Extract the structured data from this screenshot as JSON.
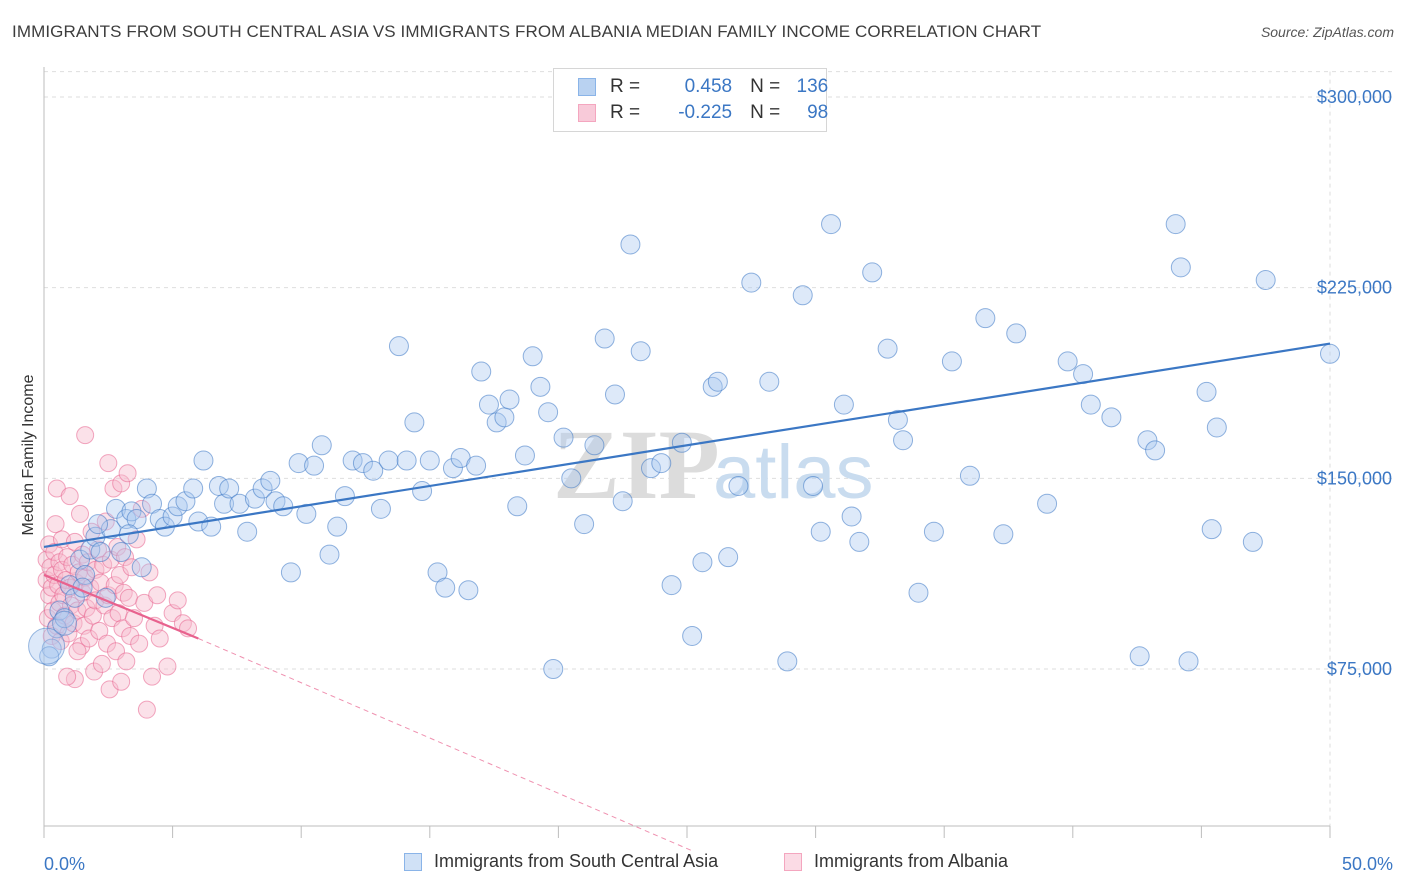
{
  "title": "IMMIGRANTS FROM SOUTH CENTRAL ASIA VS IMMIGRANTS FROM ALBANIA MEDIAN FAMILY INCOME CORRELATION CHART",
  "source": "Source: ZipAtlas.com",
  "watermark": {
    "zip": "ZIP",
    "atlas": "atlas"
  },
  "legend": {
    "rows": [
      {
        "r_label": "R =",
        "r_value": "0.458",
        "n_label": "N =",
        "n_value": "136",
        "color": "#8ab4e8"
      },
      {
        "r_label": "R =",
        "r_value": "-0.225",
        "n_label": "N =",
        "n_value": "98",
        "color": "#f4a6bf"
      }
    ]
  },
  "colors": {
    "blue": "#3b77c4",
    "blue_fill": "#a9c8ef",
    "pink": "#e8628e",
    "pink_fill": "#f6bccf"
  },
  "chart_data": {
    "type": "scatter",
    "title": "IMMIGRANTS FROM SOUTH CENTRAL ASIA VS IMMIGRANTS FROM ALBANIA MEDIAN FAMILY INCOME CORRELATION CHART",
    "xlabel": "",
    "ylabel": "Median Family Income",
    "xlim": [
      0,
      50
    ],
    "ylim": [
      0,
      310000
    ],
    "x_tick_labels": [
      "0.0%",
      "50.0%"
    ],
    "y_ticks": [
      75000,
      150000,
      225000,
      300000
    ],
    "y_tick_labels": [
      "$75,000",
      "$150,000",
      "$225,000",
      "$300,000"
    ],
    "grid": true,
    "legend_position": "top-center",
    "series": [
      {
        "name": "Immigrants from South Central Asia",
        "color": "#3b77c4",
        "r": 0.458,
        "n": 136,
        "trend": {
          "x": [
            0,
            50
          ],
          "y": [
            123000,
            203000
          ]
        },
        "points": [
          [
            0.3,
            83000
          ],
          [
            0.5,
            91000
          ],
          [
            0.6,
            98000
          ],
          [
            0.8,
            95000
          ],
          [
            1.0,
            108000
          ],
          [
            1.2,
            103000
          ],
          [
            1.4,
            118000
          ],
          [
            1.6,
            112000
          ],
          [
            1.8,
            122000
          ],
          [
            2.0,
            127000
          ],
          [
            2.2,
            121000
          ],
          [
            2.4,
            103000
          ],
          [
            2.6,
            130000
          ],
          [
            2.8,
            138000
          ],
          [
            3.0,
            121000
          ],
          [
            3.2,
            134000
          ],
          [
            3.4,
            137000
          ],
          [
            3.6,
            134000
          ],
          [
            3.8,
            115000
          ],
          [
            4.0,
            146000
          ],
          [
            4.2,
            140000
          ],
          [
            4.5,
            134000
          ],
          [
            4.7,
            131000
          ],
          [
            5.0,
            135000
          ],
          [
            5.2,
            139000
          ],
          [
            5.5,
            141000
          ],
          [
            5.8,
            146000
          ],
          [
            6.0,
            133000
          ],
          [
            6.2,
            157000
          ],
          [
            6.5,
            131000
          ],
          [
            6.8,
            147000
          ],
          [
            7.0,
            140000
          ],
          [
            7.2,
            146000
          ],
          [
            7.6,
            140000
          ],
          [
            7.9,
            129000
          ],
          [
            8.2,
            142000
          ],
          [
            8.5,
            146000
          ],
          [
            8.8,
            149000
          ],
          [
            9.0,
            141000
          ],
          [
            9.3,
            139000
          ],
          [
            9.6,
            113000
          ],
          [
            9.9,
            156000
          ],
          [
            10.2,
            136000
          ],
          [
            10.5,
            155000
          ],
          [
            10.8,
            163000
          ],
          [
            11.1,
            120000
          ],
          [
            11.4,
            131000
          ],
          [
            11.7,
            143000
          ],
          [
            12.0,
            157000
          ],
          [
            12.4,
            156000
          ],
          [
            12.8,
            153000
          ],
          [
            13.1,
            138000
          ],
          [
            13.4,
            157000
          ],
          [
            13.8,
            202000
          ],
          [
            14.1,
            157000
          ],
          [
            14.4,
            172000
          ],
          [
            14.7,
            145000
          ],
          [
            15.0,
            157000
          ],
          [
            15.3,
            113000
          ],
          [
            15.6,
            107000
          ],
          [
            15.9,
            154000
          ],
          [
            16.2,
            158000
          ],
          [
            16.5,
            106000
          ],
          [
            16.8,
            155000
          ],
          [
            17.0,
            192000
          ],
          [
            17.3,
            179000
          ],
          [
            17.6,
            172000
          ],
          [
            17.9,
            174000
          ],
          [
            18.1,
            181000
          ],
          [
            18.4,
            139000
          ],
          [
            18.7,
            159000
          ],
          [
            19.0,
            198000
          ],
          [
            19.3,
            186000
          ],
          [
            19.6,
            176000
          ],
          [
            19.8,
            75000
          ],
          [
            20.2,
            166000
          ],
          [
            20.5,
            150000
          ],
          [
            21.0,
            132000
          ],
          [
            21.4,
            163000
          ],
          [
            21.8,
            205000
          ],
          [
            22.2,
            183000
          ],
          [
            22.5,
            141000
          ],
          [
            22.8,
            242000
          ],
          [
            23.2,
            200000
          ],
          [
            23.6,
            154000
          ],
          [
            24.0,
            156000
          ],
          [
            24.4,
            108000
          ],
          [
            24.8,
            164000
          ],
          [
            25.2,
            88000
          ],
          [
            25.6,
            117000
          ],
          [
            26.0,
            186000
          ],
          [
            26.2,
            188000
          ],
          [
            26.6,
            119000
          ],
          [
            27.0,
            147000
          ],
          [
            27.5,
            227000
          ],
          [
            28.2,
            188000
          ],
          [
            28.9,
            78000
          ],
          [
            29.5,
            222000
          ],
          [
            29.9,
            147000
          ],
          [
            30.2,
            129000
          ],
          [
            30.6,
            250000
          ],
          [
            31.1,
            179000
          ],
          [
            31.4,
            135000
          ],
          [
            31.7,
            125000
          ],
          [
            32.2,
            231000
          ],
          [
            32.8,
            201000
          ],
          [
            33.2,
            173000
          ],
          [
            33.4,
            165000
          ],
          [
            34.0,
            105000
          ],
          [
            34.6,
            129000
          ],
          [
            35.3,
            196000
          ],
          [
            36.0,
            151000
          ],
          [
            36.6,
            213000
          ],
          [
            37.3,
            128000
          ],
          [
            37.8,
            207000
          ],
          [
            39.0,
            140000
          ],
          [
            39.8,
            196000
          ],
          [
            40.4,
            191000
          ],
          [
            40.7,
            179000
          ],
          [
            41.5,
            174000
          ],
          [
            42.6,
            80000
          ],
          [
            42.9,
            165000
          ],
          [
            43.2,
            161000
          ],
          [
            44.0,
            250000
          ],
          [
            44.2,
            233000
          ],
          [
            44.5,
            78000
          ],
          [
            45.2,
            184000
          ],
          [
            45.4,
            130000
          ],
          [
            45.6,
            170000
          ],
          [
            47.0,
            125000
          ],
          [
            47.5,
            228000
          ],
          [
            50.0,
            199000
          ],
          [
            0.2,
            80000
          ],
          [
            1.5,
            107000
          ],
          [
            2.1,
            132000
          ],
          [
            3.3,
            128000
          ]
        ]
      },
      {
        "name": "Immigrants from Albania",
        "color": "#e8628e",
        "r": -0.225,
        "n": 98,
        "trend": {
          "x": [
            0,
            6
          ],
          "y": [
            112000,
            87000
          ]
        },
        "trend_extended": {
          "x": [
            6,
            25.2
          ],
          "y": [
            87000,
            3500
          ]
        },
        "points": [
          [
            0.1,
            110000
          ],
          [
            0.1,
            118000
          ],
          [
            0.15,
            95000
          ],
          [
            0.2,
            104000
          ],
          [
            0.2,
            124000
          ],
          [
            0.25,
            115000
          ],
          [
            0.3,
            88000
          ],
          [
            0.3,
            107000
          ],
          [
            0.35,
            98000
          ],
          [
            0.4,
            112000
          ],
          [
            0.4,
            121000
          ],
          [
            0.45,
            132000
          ],
          [
            0.5,
            92000
          ],
          [
            0.5,
            146000
          ],
          [
            0.55,
            108000
          ],
          [
            0.6,
            101000
          ],
          [
            0.6,
            117000
          ],
          [
            0.65,
            86000
          ],
          [
            0.7,
            114000
          ],
          [
            0.7,
            126000
          ],
          [
            0.75,
            104000
          ],
          [
            0.8,
            96000
          ],
          [
            0.85,
            110000
          ],
          [
            0.9,
            119000
          ],
          [
            0.95,
            89000
          ],
          [
            1.0,
            107000
          ],
          [
            1.0,
            143000
          ],
          [
            1.05,
            100000
          ],
          [
            1.1,
            116000
          ],
          [
            1.15,
            93000
          ],
          [
            1.2,
            125000
          ],
          [
            1.2,
            71000
          ],
          [
            1.25,
            109000
          ],
          [
            1.3,
            98000
          ],
          [
            1.35,
            113000
          ],
          [
            1.4,
            136000
          ],
          [
            1.45,
            84000
          ],
          [
            1.5,
            105000
          ],
          [
            1.5,
            120000
          ],
          [
            1.55,
            92000
          ],
          [
            1.6,
            111000
          ],
          [
            1.6,
            167000
          ],
          [
            1.65,
            99000
          ],
          [
            1.7,
            117000
          ],
          [
            1.75,
            87000
          ],
          [
            1.8,
            107000
          ],
          [
            1.85,
            129000
          ],
          [
            1.9,
            96000
          ],
          [
            1.95,
            74000
          ],
          [
            2.0,
            114000
          ],
          [
            2.0,
            102000
          ],
          [
            2.1,
            122000
          ],
          [
            2.15,
            90000
          ],
          [
            2.2,
            109000
          ],
          [
            2.25,
            77000
          ],
          [
            2.3,
            116000
          ],
          [
            2.35,
            100000
          ],
          [
            2.4,
            133000
          ],
          [
            2.45,
            85000
          ],
          [
            2.5,
            104000
          ],
          [
            2.5,
            156000
          ],
          [
            2.55,
            67000
          ],
          [
            2.6,
            118000
          ],
          [
            2.65,
            95000
          ],
          [
            2.7,
            146000
          ],
          [
            2.75,
            108000
          ],
          [
            2.8,
            82000
          ],
          [
            2.85,
            123000
          ],
          [
            2.9,
            97000
          ],
          [
            2.95,
            112000
          ],
          [
            3.0,
            70000
          ],
          [
            3.0,
            148000
          ],
          [
            3.05,
            91000
          ],
          [
            3.1,
            105000
          ],
          [
            3.15,
            119000
          ],
          [
            3.2,
            78000
          ],
          [
            3.25,
            152000
          ],
          [
            3.3,
            103000
          ],
          [
            3.35,
            88000
          ],
          [
            3.4,
            115000
          ],
          [
            3.5,
            95000
          ],
          [
            3.6,
            126000
          ],
          [
            3.7,
            85000
          ],
          [
            3.8,
            138000
          ],
          [
            3.9,
            101000
          ],
          [
            4.0,
            59000
          ],
          [
            4.1,
            113000
          ],
          [
            4.2,
            72000
          ],
          [
            4.3,
            92000
          ],
          [
            4.4,
            104000
          ],
          [
            4.5,
            87000
          ],
          [
            4.8,
            76000
          ],
          [
            5.0,
            97000
          ],
          [
            5.2,
            102000
          ],
          [
            5.4,
            93000
          ],
          [
            5.6,
            91000
          ],
          [
            1.3,
            82000
          ],
          [
            0.9,
            72000
          ]
        ]
      }
    ]
  },
  "bottom_legend": [
    {
      "label": "Immigrants from South Central Asia",
      "color": "#8ab4e8"
    },
    {
      "label": "Immigrants from Albania",
      "color": "#f4a6bf"
    }
  ]
}
